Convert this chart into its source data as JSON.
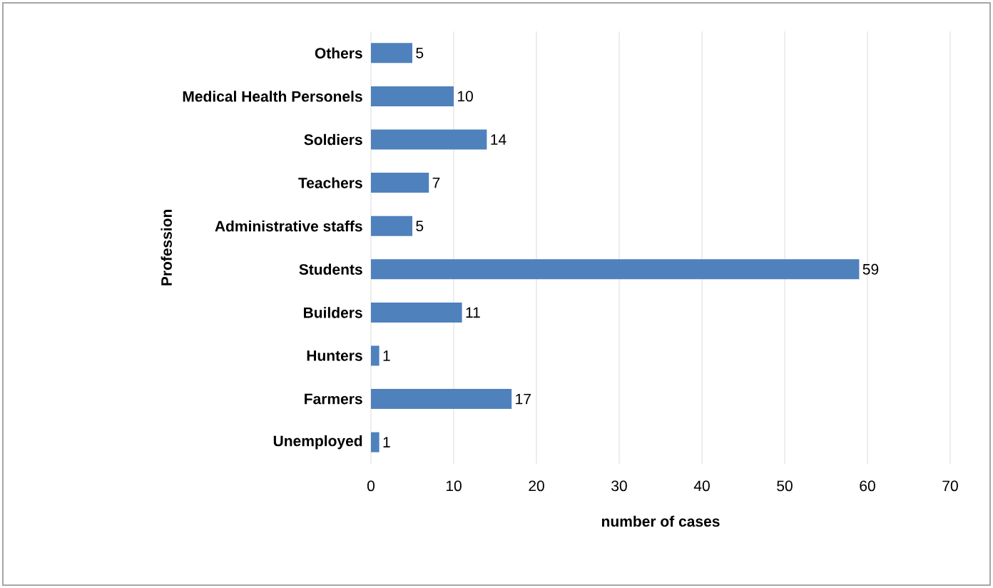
{
  "chart_data": {
    "type": "bar",
    "orientation": "horizontal",
    "xlabel": "number of cases",
    "ylabel": "Profession",
    "categories": [
      "Others",
      "Medical Health Personels",
      "Soldiers",
      "Teachers",
      "Administrative staffs",
      "Students",
      "Builders",
      "Hunters",
      "Farmers",
      "Unemployed"
    ],
    "values": [
      5,
      10,
      14,
      7,
      5,
      59,
      11,
      1,
      17,
      1
    ],
    "color": "#4f81bd",
    "xlim": [
      0,
      70
    ],
    "xticks": [
      0,
      10,
      20,
      30,
      40,
      50,
      60,
      70
    ],
    "grid": "x",
    "data_labels": true
  }
}
